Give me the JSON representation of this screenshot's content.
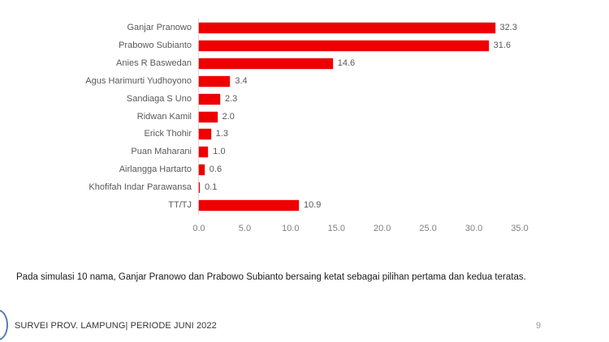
{
  "chart_data": {
    "type": "bar",
    "orientation": "horizontal",
    "title": "",
    "xlabel": "",
    "ylabel": "",
    "categories": [
      "Ganjar Pranowo",
      "Prabowo Subianto",
      "Anies R Baswedan",
      "Agus Harimurti Yudhoyono",
      "Sandiaga S Uno",
      "Ridwan Kamil",
      "Erick Thohir",
      "Puan Maharani",
      "Airlangga Hartarto",
      "Khofifah Indar Parawansa",
      "TT/TJ"
    ],
    "values": [
      32.3,
      31.6,
      14.6,
      3.4,
      2.3,
      2.0,
      1.3,
      1.0,
      0.6,
      0.1,
      10.9
    ],
    "value_labels": [
      "32.3",
      "31.6",
      "14.6",
      "3.4",
      "2.3",
      "2.0",
      "1.3",
      "1.0",
      "0.6",
      "0.1",
      "10.9"
    ],
    "xlim": [
      0,
      35
    ],
    "x_ticks": [
      "0.0",
      "5.0",
      "10.0",
      "15.0",
      "20.0",
      "25.0",
      "30.0",
      "35.0"
    ],
    "grid": false,
    "legend": "none",
    "bar_color": "#ee0000"
  },
  "caption": "Pada simulasi 10 nama, Ganjar Pranowo dan Prabowo Subianto bersaing ketat sebagai pilihan pertama dan kedua teratas.",
  "footer": {
    "survey_label": "SURVEI PROV. LAMPUNG| PERIODE JUNI 2022",
    "page_number": "9"
  }
}
